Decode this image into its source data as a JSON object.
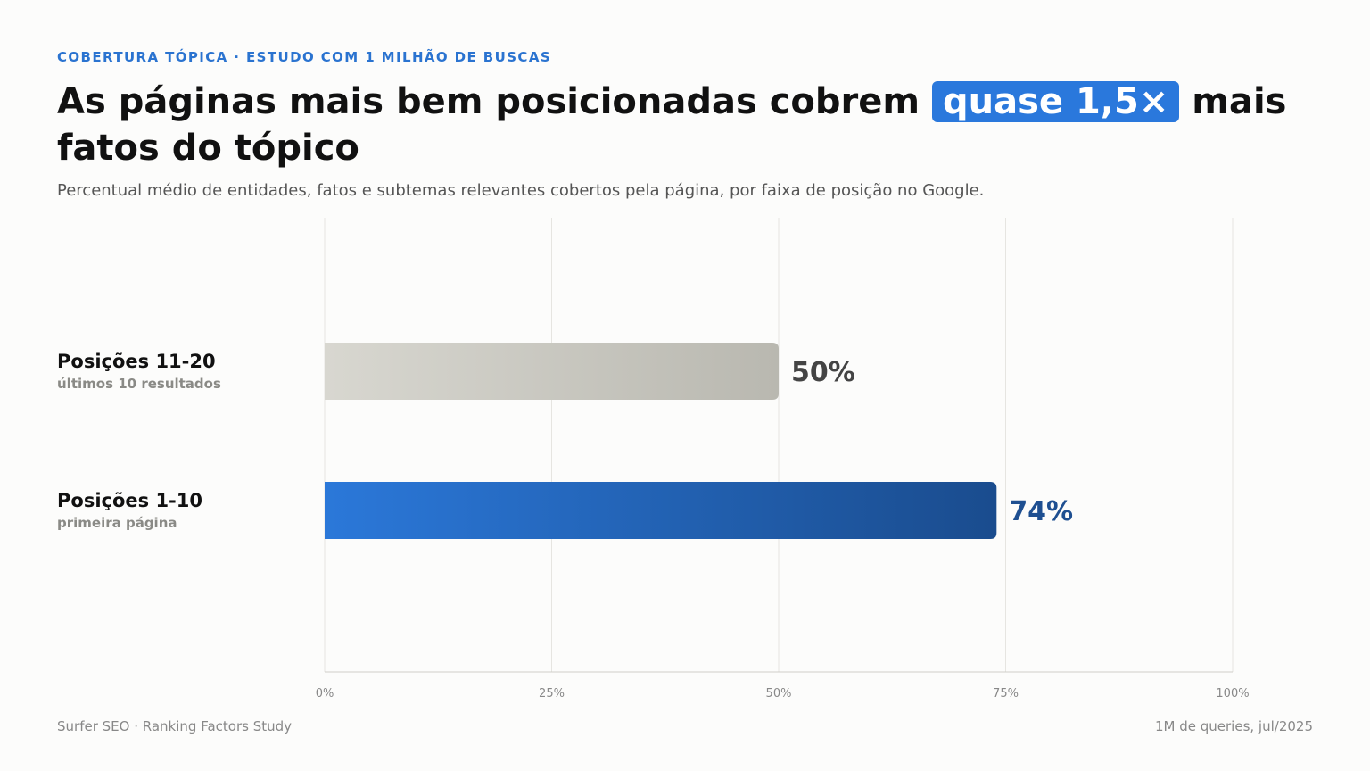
{
  "header": {
    "eyebrow": "COBERTURA TÓPICA · ESTUDO COM 1 MILHÃO DE BUSCAS",
    "title_main": "As páginas mais bem posicionadas cobrem ",
    "title_highlight": "quase 1,5×",
    "title_end": " mais fatos do tópico",
    "subtitle": "Percentual médio de entidades, fatos e subtemas relevantes cobertos pela página, por faixa de posição no Google."
  },
  "chart_data": {
    "type": "bar",
    "orientation": "horizontal",
    "categories": [
      "Posições 11-20",
      "Posições 1-10"
    ],
    "category_sublabels": [
      "últimos 10 resultados",
      "primeira página"
    ],
    "values": [
      50,
      74
    ],
    "value_labels": [
      "50%",
      "74%"
    ],
    "xlim": [
      0,
      100
    ],
    "xticks": [
      0,
      25,
      50,
      75,
      100
    ],
    "xtick_labels": [
      "0%",
      "25%",
      "50%",
      "75%",
      "100%"
    ],
    "grid": true,
    "colors": {
      "bar_gray_start": "#d8d7d0",
      "bar_gray_end": "#b9b8b0",
      "bar_blue_start": "#2b78d9",
      "bar_blue_end": "#1a4c8e",
      "label_gray": "#444444",
      "label_blue": "#1e4f91"
    }
  },
  "footer": {
    "source": "Surfer SEO · Ranking Factors Study",
    "note": "1M de queries, jul/2025"
  }
}
